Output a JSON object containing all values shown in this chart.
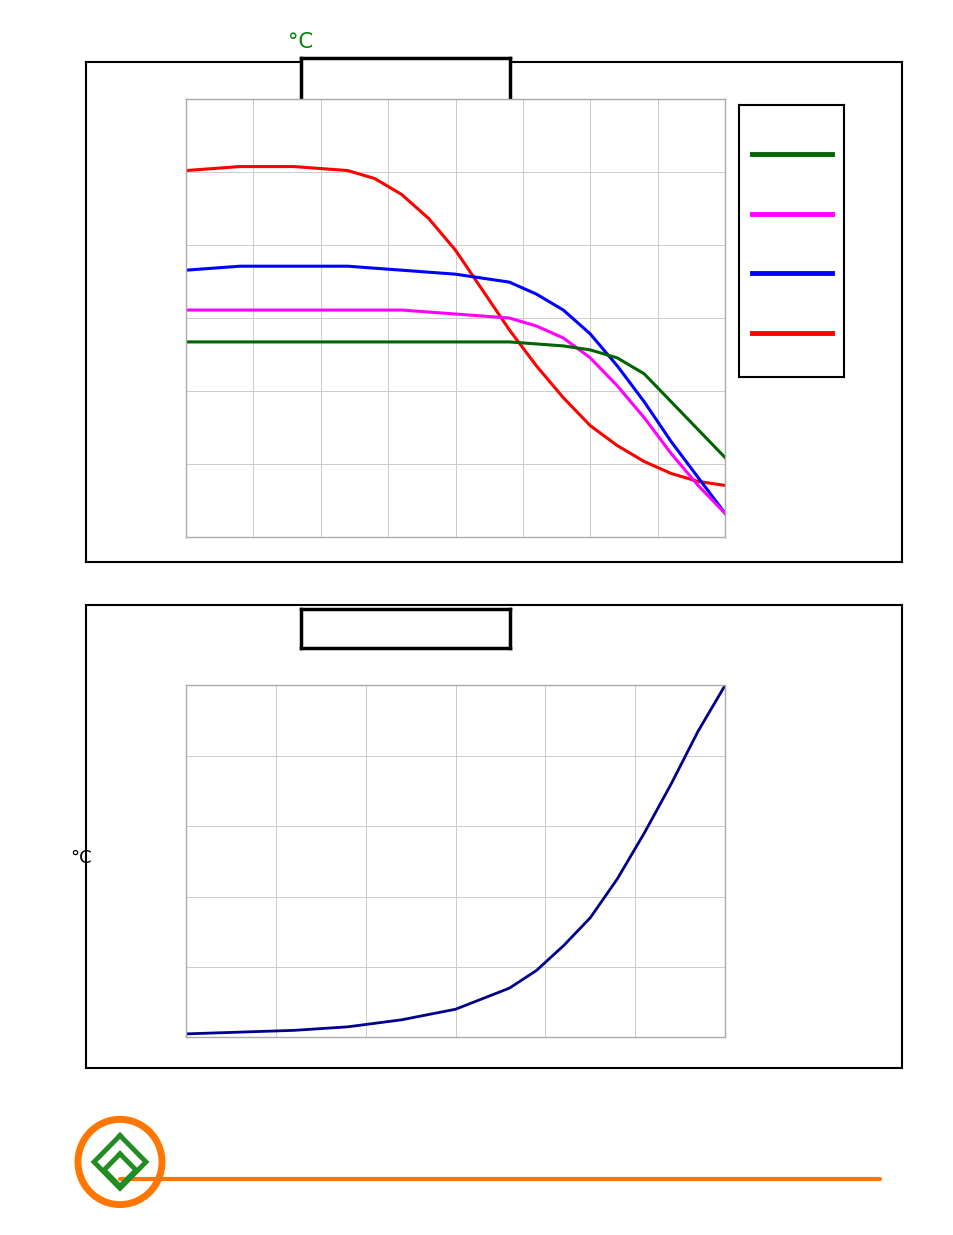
{
  "page_bg": "#ffffff",
  "top_chart": {
    "outer_box_color": "#000000",
    "inner_box_color": "#aaaaaa",
    "grid_color": "#cccccc",
    "ylabel_text": "°C",
    "ylabel_color": "#008000",
    "legend_colors": [
      "#006400",
      "#ff00ff",
      "#0000ff",
      "#ff0000"
    ],
    "curves": {
      "red": {
        "x": [
          0,
          0.1,
          0.2,
          0.3,
          0.35,
          0.4,
          0.45,
          0.5,
          0.55,
          0.6,
          0.65,
          0.7,
          0.75,
          0.8,
          0.85,
          0.9,
          0.95,
          1.0
        ],
        "y": [
          0.82,
          0.83,
          0.83,
          0.82,
          0.8,
          0.76,
          0.7,
          0.62,
          0.52,
          0.42,
          0.33,
          0.25,
          0.18,
          0.13,
          0.09,
          0.06,
          0.04,
          0.03
        ]
      },
      "blue": {
        "x": [
          0,
          0.1,
          0.2,
          0.3,
          0.4,
          0.5,
          0.6,
          0.65,
          0.7,
          0.75,
          0.8,
          0.85,
          0.9,
          0.95,
          1.0
        ],
        "y": [
          0.57,
          0.58,
          0.58,
          0.58,
          0.57,
          0.56,
          0.54,
          0.51,
          0.47,
          0.41,
          0.33,
          0.24,
          0.14,
          0.05,
          -0.04
        ]
      },
      "magenta": {
        "x": [
          0,
          0.1,
          0.2,
          0.3,
          0.4,
          0.5,
          0.6,
          0.65,
          0.7,
          0.75,
          0.8,
          0.85,
          0.9,
          0.95,
          1.0
        ],
        "y": [
          0.47,
          0.47,
          0.47,
          0.47,
          0.47,
          0.46,
          0.45,
          0.43,
          0.4,
          0.35,
          0.28,
          0.2,
          0.11,
          0.03,
          -0.04
        ]
      },
      "green": {
        "x": [
          0,
          0.1,
          0.2,
          0.3,
          0.4,
          0.5,
          0.6,
          0.7,
          0.75,
          0.8,
          0.85,
          0.9,
          0.95,
          1.0
        ],
        "y": [
          0.39,
          0.39,
          0.39,
          0.39,
          0.39,
          0.39,
          0.39,
          0.38,
          0.37,
          0.35,
          0.31,
          0.24,
          0.17,
          0.1
        ]
      }
    },
    "xlim": [
      0,
      1.0
    ],
    "ylim": [
      -0.1,
      1.0
    ],
    "xgrid": 8,
    "ygrid": 6
  },
  "bottom_chart": {
    "outer_box_color": "#000000",
    "inner_box_color": "#aaaaaa",
    "grid_color": "#cccccc",
    "ylabel_text": "°C",
    "ylabel_color": "#000000",
    "curve_color": "#00008b",
    "curve": {
      "x": [
        0,
        0.1,
        0.2,
        0.3,
        0.4,
        0.5,
        0.55,
        0.6,
        0.65,
        0.7,
        0.75,
        0.8,
        0.85,
        0.9,
        0.95,
        1.0
      ],
      "y": [
        0.01,
        0.015,
        0.02,
        0.03,
        0.05,
        0.08,
        0.11,
        0.14,
        0.19,
        0.26,
        0.34,
        0.45,
        0.58,
        0.72,
        0.87,
        1.0
      ]
    },
    "xlim": [
      0,
      1.0
    ],
    "ylim": [
      0,
      1.0
    ],
    "xgrid": 6,
    "ygrid": 5
  },
  "footer": {
    "circle_color": "#ff7700",
    "logo_color": "#228b22",
    "line_color": "#ff7700"
  }
}
